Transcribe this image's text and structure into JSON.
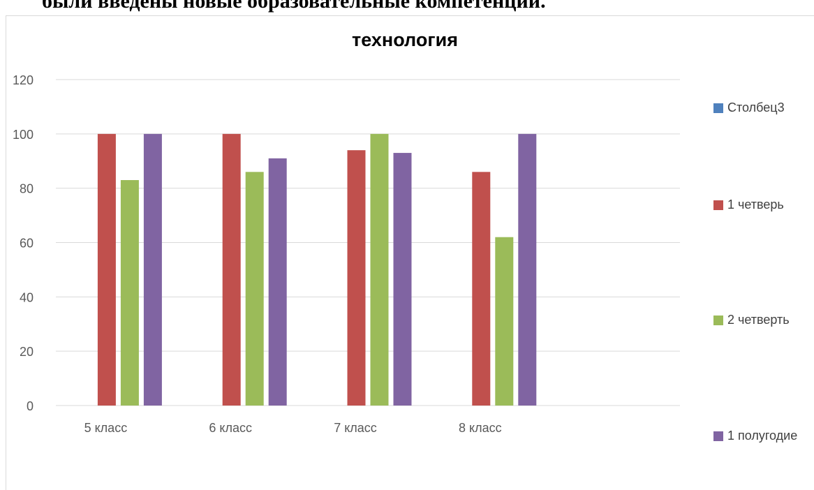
{
  "document": {
    "heading": "были введены новые образовательные компетенции."
  },
  "chart_data": {
    "type": "bar",
    "title": "технология",
    "categories": [
      "5 класс",
      "6 класс",
      "7 класс",
      "8 класс",
      ""
    ],
    "series": [
      {
        "name": "Столбец3",
        "color": "#4f81bd",
        "values": [
          null,
          null,
          null,
          null,
          null
        ]
      },
      {
        "name": "1 четверь",
        "color": "#c0504d",
        "values": [
          100,
          100,
          94,
          86,
          null
        ]
      },
      {
        "name": "2 четверть",
        "color": "#9bbb59",
        "values": [
          83,
          86,
          100,
          62,
          null
        ]
      },
      {
        "name": "1 полугодие",
        "color": "#8064a2",
        "values": [
          100,
          91,
          93,
          100,
          null
        ]
      }
    ],
    "ylim": [
      0,
      120
    ],
    "yticks": [
      "0",
      "20",
      "40",
      "60",
      "80",
      "100",
      "120"
    ],
    "grid": true,
    "legend": "right"
  }
}
